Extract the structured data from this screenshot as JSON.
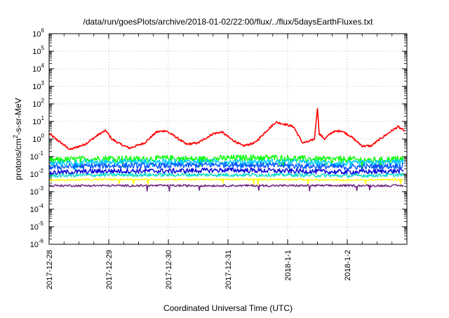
{
  "chart_data": {
    "type": "line",
    "title": "/data/run/goesPlots/archive/2018-01-02/22:00/flux/../flux/5daysEarthFluxes.txt",
    "xlabel": "Coordinated Universal Time (UTC)",
    "ylabel": {
      "base": "protons/cm",
      "sup": "2",
      "rest": "-s-sr-MeV"
    },
    "y_scale": "log",
    "ylim_exponents": [
      -6,
      6
    ],
    "y_ticks": [
      {
        "base": "10",
        "exp": "-6"
      },
      {
        "base": "10",
        "exp": "-5"
      },
      {
        "base": "10",
        "exp": "-4"
      },
      {
        "base": "10",
        "exp": "-3"
      },
      {
        "base": "10",
        "exp": "-2"
      },
      {
        "base": "10",
        "exp": "-1"
      },
      {
        "base": "10",
        "exp": "0"
      },
      {
        "base": "10",
        "exp": "1"
      },
      {
        "base": "10",
        "exp": "2"
      },
      {
        "base": "10",
        "exp": "3"
      },
      {
        "base": "10",
        "exp": "4"
      },
      {
        "base": "10",
        "exp": "5"
      },
      {
        "base": "10",
        "exp": "6"
      }
    ],
    "x_range": [
      "2017-12-28 00:00",
      "2018-01-02 22:00"
    ],
    "x_ticks": [
      "2017-12-28",
      "2017-12-29",
      "2017-12-30",
      "2017-12-31",
      "2018-1-1",
      "2018-1-2"
    ],
    "grid": true,
    "series": [
      {
        "color": "#ff0000",
        "values": [
          [
            0,
            2.0
          ],
          [
            0.2,
            0.6
          ],
          [
            0.35,
            0.25
          ],
          [
            0.6,
            0.5
          ],
          [
            0.85,
            2.0
          ],
          [
            0.95,
            3.0
          ],
          [
            1.05,
            1.0
          ],
          [
            1.2,
            0.5
          ],
          [
            1.35,
            0.3
          ],
          [
            1.6,
            0.6
          ],
          [
            1.8,
            2.5
          ],
          [
            1.95,
            3.0
          ],
          [
            2.1,
            1.5
          ],
          [
            2.3,
            0.5
          ],
          [
            2.5,
            0.6
          ],
          [
            2.75,
            2.0
          ],
          [
            2.9,
            2.5
          ],
          [
            3.05,
            1.0
          ],
          [
            3.25,
            0.4
          ],
          [
            3.45,
            0.6
          ],
          [
            3.65,
            3.0
          ],
          [
            3.8,
            9.0
          ],
          [
            3.95,
            7.0
          ],
          [
            4.1,
            5.0
          ],
          [
            4.25,
            0.6
          ],
          [
            4.35,
            0.7
          ],
          [
            4.45,
            1.0
          ],
          [
            4.5,
            60
          ],
          [
            4.53,
            2.0
          ],
          [
            4.62,
            1.0
          ],
          [
            4.75,
            2.5
          ],
          [
            4.9,
            3.0
          ],
          [
            5.05,
            1.5
          ],
          [
            5.25,
            0.4
          ],
          [
            5.4,
            0.4
          ],
          [
            5.55,
            1.0
          ],
          [
            5.75,
            3.0
          ],
          [
            5.85,
            5.0
          ],
          [
            5.95,
            3.0
          ]
        ]
      },
      {
        "color": "#00ff00",
        "values": [
          [
            0,
            0.06
          ],
          [
            0.5,
            0.07
          ],
          [
            1,
            0.08
          ],
          [
            1.5,
            0.07
          ],
          [
            2,
            0.08
          ],
          [
            2.5,
            0.07
          ],
          [
            3,
            0.08
          ],
          [
            3.5,
            0.09
          ],
          [
            4,
            0.08
          ],
          [
            4.5,
            0.07
          ],
          [
            5,
            0.07
          ],
          [
            5.5,
            0.06
          ],
          [
            5.95,
            0.08
          ]
        ]
      },
      {
        "color": "#00c8ff",
        "values": [
          [
            0,
            0.04
          ],
          [
            1,
            0.05
          ],
          [
            2,
            0.05
          ],
          [
            3,
            0.05
          ],
          [
            4,
            0.05
          ],
          [
            5,
            0.04
          ],
          [
            5.95,
            0.05
          ]
        ]
      },
      {
        "color": "#0055ff",
        "values": [
          [
            0,
            0.025
          ],
          [
            1,
            0.03
          ],
          [
            2,
            0.03
          ],
          [
            3,
            0.035
          ],
          [
            4,
            0.03
          ],
          [
            5,
            0.025
          ],
          [
            5.95,
            0.03
          ]
        ]
      },
      {
        "color": "#0000dd",
        "values": [
          [
            0,
            0.012
          ],
          [
            1,
            0.015
          ],
          [
            2,
            0.015
          ],
          [
            3,
            0.017
          ],
          [
            4,
            0.015
          ],
          [
            5,
            0.013
          ],
          [
            5.95,
            0.015
          ]
        ]
      },
      {
        "color": "#00ddcc",
        "values": [
          [
            0,
            0.008
          ],
          [
            1,
            0.009
          ],
          [
            2,
            0.009
          ],
          [
            3,
            0.009
          ],
          [
            4,
            0.009
          ],
          [
            5,
            0.008
          ],
          [
            5.95,
            0.009
          ]
        ]
      },
      {
        "color": "#ffff00",
        "values": [
          [
            0,
            0.0045
          ],
          [
            1,
            0.005
          ],
          [
            2,
            0.005
          ],
          [
            3,
            0.005
          ],
          [
            4,
            0.005
          ],
          [
            5,
            0.0045
          ],
          [
            5.95,
            0.005
          ]
        ]
      },
      {
        "color": "#6a1e80",
        "values": [
          [
            0,
            0.0022
          ],
          [
            1,
            0.0022
          ],
          [
            2,
            0.0022
          ],
          [
            3,
            0.0022
          ],
          [
            4,
            0.0022
          ],
          [
            5,
            0.0022
          ],
          [
            5.95,
            0.0022
          ]
        ]
      }
    ]
  }
}
